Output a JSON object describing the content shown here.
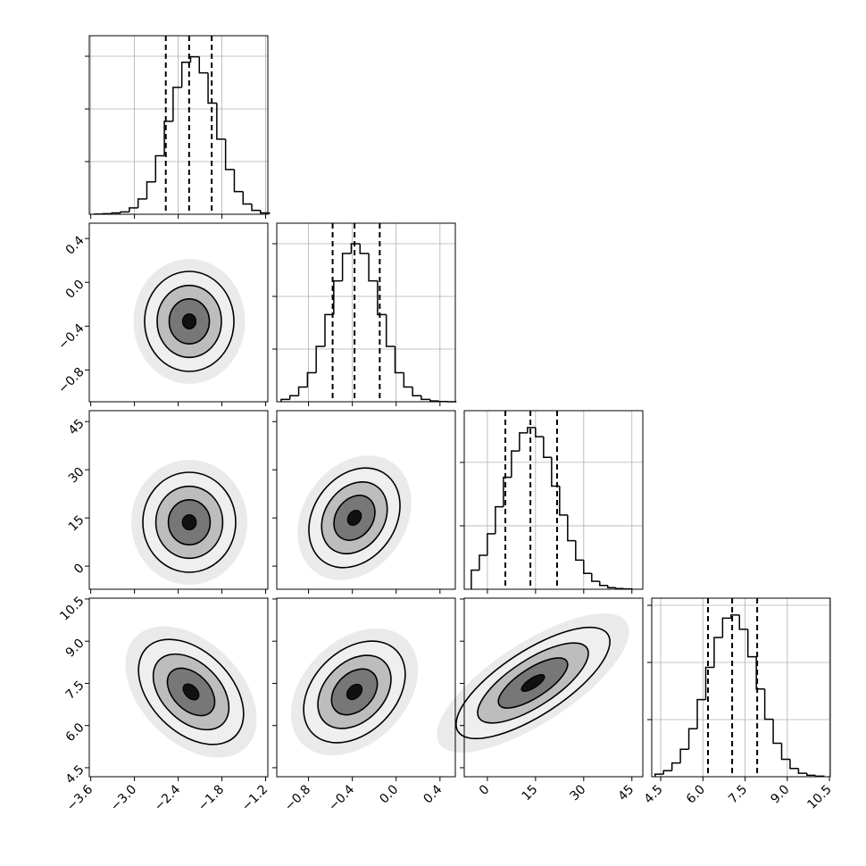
{
  "chart_data": {
    "type": "corner",
    "params": [
      {
        "lim": [
          -3.62,
          -1.17
        ],
        "ticks": [
          {
            "value": -3.6,
            "label": "−3.6"
          },
          {
            "value": -3.0,
            "label": "−3.0"
          },
          {
            "value": -2.4,
            "label": "−2.4"
          },
          {
            "value": -1.8,
            "label": "−1.8"
          },
          {
            "value": -1.2,
            "label": "−1.2"
          }
        ]
      },
      {
        "lim": [
          -1.09,
          0.54
        ],
        "ticks": [
          {
            "value": -0.8,
            "label": "−0.8"
          },
          {
            "value": -0.4,
            "label": "−0.4"
          },
          {
            "value": 0.0,
            "label": "0.0"
          },
          0.4
        ]
      },
      {
        "lim": [
          -7.2,
          48.4
        ],
        "ticks": [
          0,
          15,
          30,
          45
        ]
      },
      {
        "lim": [
          4.18,
          10.53
        ],
        "ticks": [
          4.5,
          {
            "value": 6.0,
            "label": "6.0"
          },
          7.5,
          {
            "value": 9.0,
            "label": "9.0"
          },
          10.5
        ]
      }
    ],
    "histograms": [
      {
        "bins": [
          -3.55,
          -3.43,
          -3.31,
          -3.19,
          -3.07,
          -2.95,
          -2.83,
          -2.71,
          -2.59,
          -2.47,
          -2.35,
          -2.23,
          -2.11,
          -1.99,
          -1.87,
          -1.75,
          -1.63,
          -1.51,
          -1.39,
          -1.27,
          -1.15
        ],
        "counts": [
          1,
          2,
          5,
          9,
          24,
          58,
          123,
          222,
          353,
          482,
          577,
          598,
          537,
          422,
          285,
          170,
          86,
          39,
          15,
          5
        ],
        "quantiles": [
          -2.57,
          -2.25,
          -1.94
        ],
        "ylim": [
          0,
          678
        ],
        "yticks": [
          200,
          400,
          600
        ]
      },
      {
        "bins": [
          -1.05,
          -0.97,
          -0.89,
          -0.81,
          -0.73,
          -0.65,
          -0.57,
          -0.49,
          -0.41,
          -0.33,
          -0.25,
          -0.17,
          -0.09,
          -0.01,
          0.07,
          0.15,
          0.23,
          0.31,
          0.39,
          0.47,
          0.55
        ],
        "counts": [
          9,
          23,
          56,
          110,
          210,
          331,
          459,
          563,
          600,
          563,
          459,
          331,
          210,
          110,
          56,
          23,
          9,
          3,
          1,
          0
        ],
        "quantiles": [
          -0.58,
          -0.38,
          -0.15
        ],
        "ylim": [
          0,
          678
        ],
        "yticks": [
          200,
          400,
          600
        ]
      },
      {
        "bins": [
          -5,
          -2.5,
          0,
          2.5,
          5,
          7.5,
          10,
          12.5,
          15,
          17.5,
          20,
          22.5,
          25,
          27.5,
          30,
          32.5,
          35,
          37.5,
          40,
          42.5,
          45
        ],
        "counts": [
          60,
          107,
          175,
          260,
          353,
          436,
          493,
          510,
          481,
          416,
          325,
          234,
          153,
          92,
          50,
          25,
          12,
          5,
          2,
          1
        ],
        "quantiles": [
          5.6,
          13.4,
          21.7
        ],
        "ylim": [
          0,
          563
        ],
        "yticks": [
          200,
          400
        ]
      },
      {
        "bins": [
          4.3,
          4.6,
          4.9,
          5.2,
          5.5,
          5.8,
          6.1,
          6.4,
          6.7,
          7.0,
          7.3,
          7.6,
          7.9,
          8.2,
          8.5,
          8.8,
          9.1,
          9.4,
          9.7,
          10.0,
          10.3
        ],
        "counts": [
          9,
          21,
          48,
          96,
          168,
          270,
          383,
          487,
          555,
          566,
          516,
          420,
          307,
          201,
          117,
          61,
          29,
          12,
          5,
          2
        ],
        "quantiles": [
          6.18,
          7.04,
          7.93
        ],
        "ylim": [
          0,
          625
        ],
        "yticks": [
          200,
          400,
          600
        ]
      }
    ]
  }
}
